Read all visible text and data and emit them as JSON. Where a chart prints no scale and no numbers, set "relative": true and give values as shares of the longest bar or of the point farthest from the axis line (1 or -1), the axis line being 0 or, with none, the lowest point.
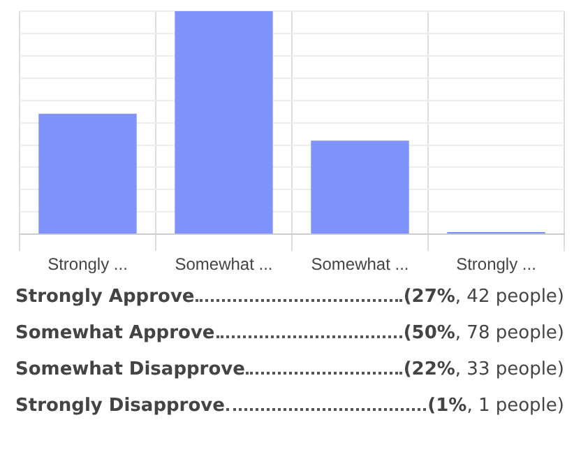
{
  "chart_data": {
    "type": "bar",
    "categories": [
      "Strongly ...",
      "Somewhat ...",
      "Somewhat ...",
      "Strongly ..."
    ],
    "values": [
      0.54,
      1,
      0.42,
      0.01
    ],
    "color": "#7f93fb",
    "relative": true,
    "tick_labels": "x",
    "grid": true,
    "legend": false,
    "annotations": [
      "Strongly Approve",
      "(27%, 42 people)",
      "Somewhat Approve",
      "(50%, 78 people)",
      "Somewhat Disapprove",
      "(22%, 33 people)",
      "Strongly Disapprove",
      "(1%, 1 people)"
    ]
  }
}
